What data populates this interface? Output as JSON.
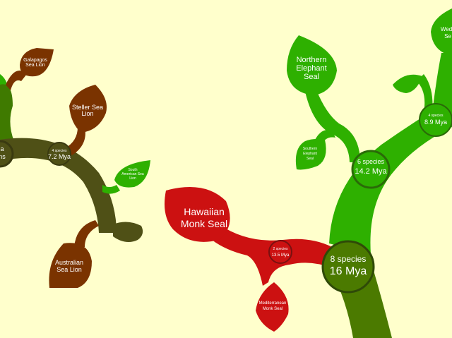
{
  "colors": {
    "background": "#ffffcc",
    "pinnipeds": "#4f5016",
    "otariids": "#7a3300",
    "phocids": "#2eb000",
    "phocid_root": "#4b7a00",
    "monachines": "#cc1111",
    "node_ring": "#2f4a08"
  },
  "leaves": {
    "galapagos": [
      "Galapagos",
      "Sea Lion"
    ],
    "steller": [
      "Steller Sea",
      "Lion"
    ],
    "south_american": [
      "South",
      "American Sea",
      "Lion"
    ],
    "australian": [
      "Australian",
      "Sea Lion"
    ],
    "hawaiian": [
      "Hawaiian",
      "Monk Seal"
    ],
    "mediterranean": [
      "Mediterranean",
      "Monk Seal"
    ],
    "northern_elephant": [
      "Northern",
      "Elephant",
      "Seal"
    ],
    "southern_elephant": [
      "Southern",
      "Elephant",
      "Seal"
    ],
    "weddell": [
      "Wed",
      "Se"
    ]
  },
  "nodes": {
    "left_partial": [
      "a",
      "ns"
    ],
    "sea_lions": {
      "species": "4 species",
      "age": "7.2 Mya"
    },
    "monk": {
      "species": "2 species",
      "age": "13.5 Mya"
    },
    "phocidae": {
      "species": "8 species",
      "age": "16 Mya"
    },
    "elephant": {
      "species": "6 species",
      "age": "14.2 Mya"
    },
    "lobodontini": {
      "species": "4 species",
      "age": "8.9 Mya"
    }
  }
}
